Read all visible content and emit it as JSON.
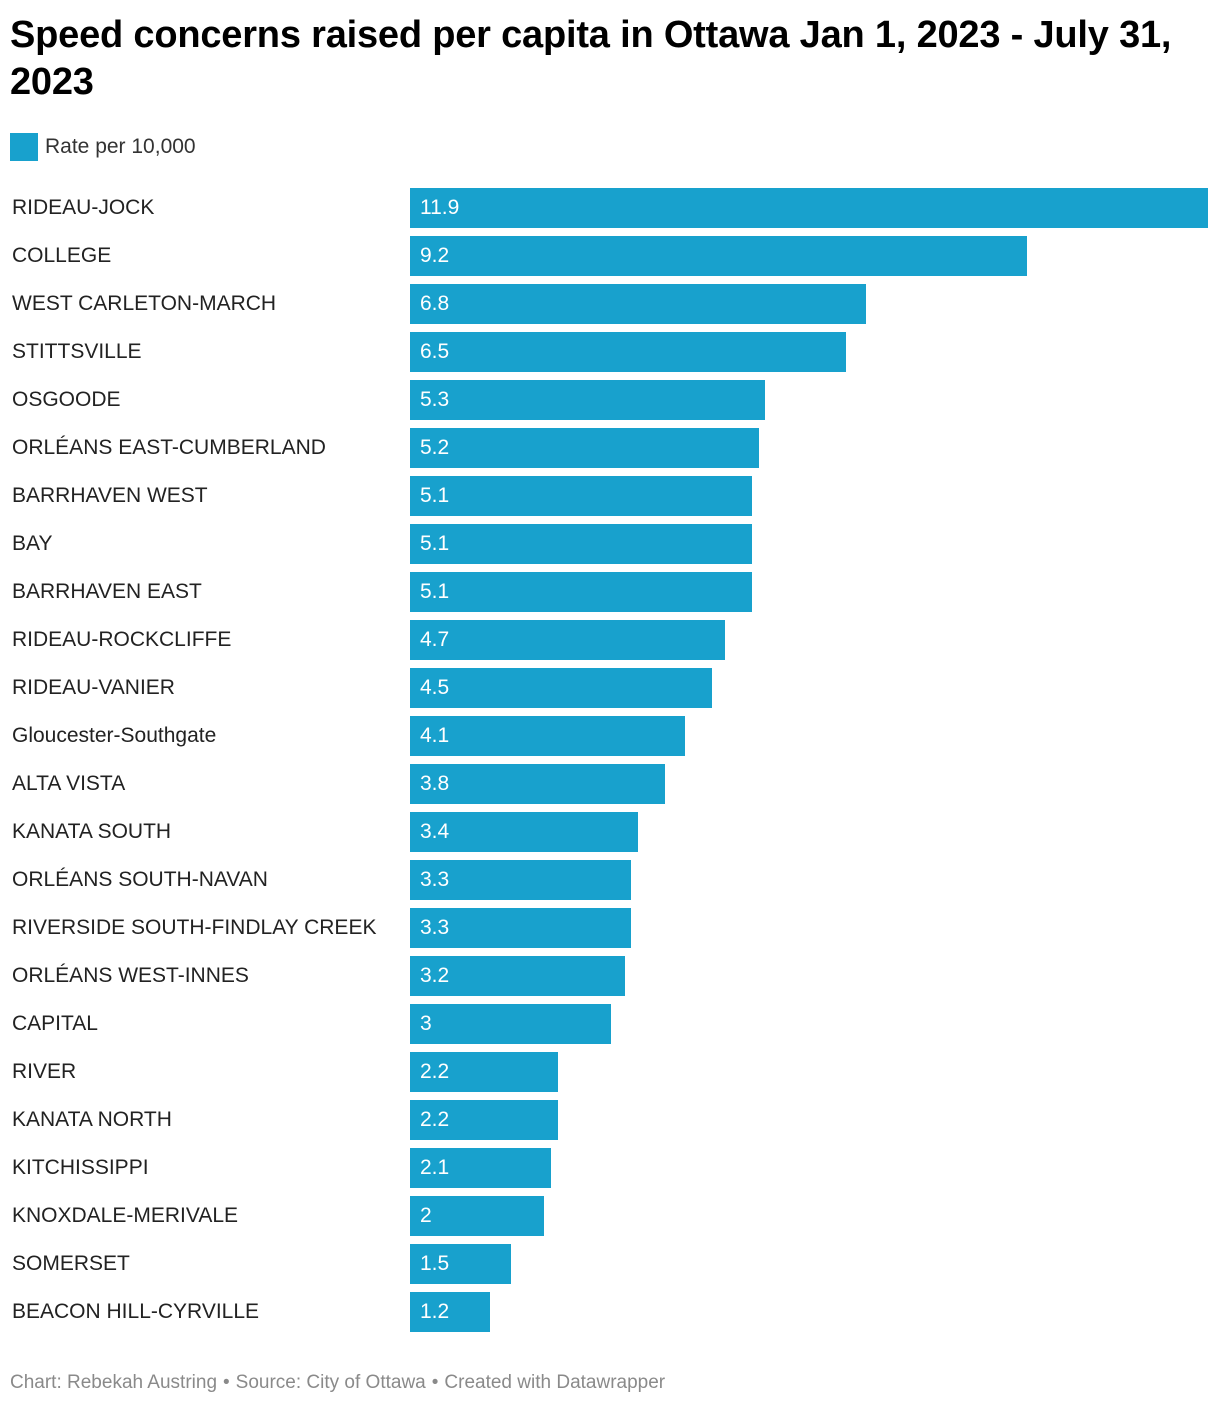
{
  "title": "Speed concerns raised per capita in Ottawa Jan 1, 2023 - July 31, 2023",
  "legend": {
    "label": "Rate per 10,000",
    "color": "#18a1cd"
  },
  "chart_data": {
    "type": "bar",
    "orientation": "horizontal",
    "title": "Speed concerns raised per capita in Ottawa Jan 1, 2023 - July 31, 2023",
    "categories": [
      "RIDEAU-JOCK",
      "COLLEGE",
      "WEST CARLETON-MARCH",
      "STITTSVILLE",
      "OSGOODE",
      "ORLÉANS EAST-CUMBERLAND",
      "BARRHAVEN WEST",
      "BAY",
      "BARRHAVEN EAST",
      "RIDEAU-ROCKCLIFFE",
      "RIDEAU-VANIER",
      "Gloucester-Southgate",
      "ALTA VISTA",
      "KANATA SOUTH",
      "ORLÉANS SOUTH-NAVAN",
      "RIVERSIDE SOUTH-FINDLAY CREEK",
      "ORLÉANS WEST-INNES",
      "CAPITAL",
      "RIVER",
      "KANATA NORTH",
      "KITCHISSIPPI",
      "KNOXDALE-MERIVALE",
      "SOMERSET",
      "BEACON HILL-CYRVILLE"
    ],
    "series": [
      {
        "name": "Rate per 10,000",
        "color": "#18a1cd",
        "values": [
          11.9,
          9.2,
          6.8,
          6.5,
          5.3,
          5.2,
          5.1,
          5.1,
          5.1,
          4.7,
          4.5,
          4.1,
          3.8,
          3.4,
          3.3,
          3.3,
          3.2,
          3,
          2.2,
          2.2,
          2.1,
          2,
          1.5,
          1.2
        ],
        "labels": [
          "11.9",
          "9.2",
          "6.8",
          "6.5",
          "5.3",
          "5.2",
          "5.1",
          "5.1",
          "5.1",
          "4.7",
          "4.5",
          "4.1",
          "3.8",
          "3.4",
          "3.3",
          "3.3",
          "3.2",
          "3",
          "2.2",
          "2.2",
          "2.1",
          "2",
          "1.5",
          "1.2"
        ]
      }
    ],
    "xlim": [
      0,
      11.9
    ],
    "grid": false,
    "legend_position": "top-left",
    "xlabel": "",
    "ylabel": ""
  },
  "footer": {
    "credit": "Chart: Rebekah Austring",
    "source": "Source: City of Ottawa",
    "tool": "Created with Datawrapper",
    "separator": "•"
  }
}
